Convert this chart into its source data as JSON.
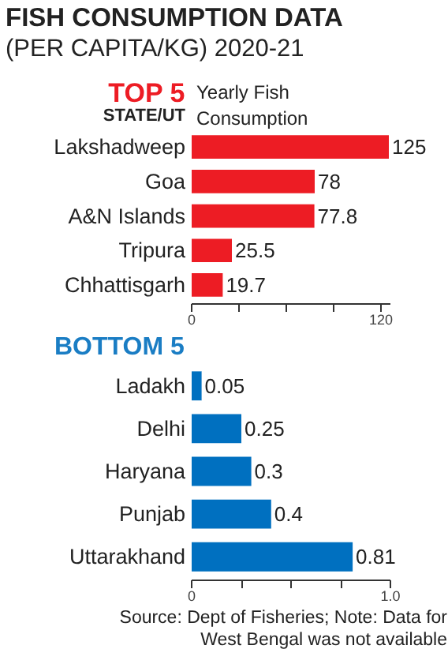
{
  "chart_data": [
    {
      "type": "bar",
      "orientation": "horizontal",
      "title": "FISH CONSUMPTION DATA",
      "subtitle": "(PER CAPITA/KG) 2020-21",
      "annotations": [
        "TOP 5"
      ],
      "ylabel": "STATE/UT",
      "xlabel": "Yearly Fish Consumption",
      "categories": [
        "Lakshadweep",
        "Goa",
        "A&N Islands",
        "Tripura",
        "Chhattisgarh"
      ],
      "values": [
        125,
        78,
        77.8,
        25.5,
        19.7
      ],
      "color": "#ed1c24",
      "xlim": [
        0,
        126
      ],
      "xticks": [
        0,
        {
          "value": 30,
          "label": null
        },
        {
          "value": 60,
          "label": null
        },
        {
          "value": 90,
          "label": null
        },
        120
      ],
      "data_labels": true,
      "grid": false
    },
    {
      "type": "bar",
      "orientation": "horizontal",
      "title": "BOTTOM 5",
      "annotations": [
        "Source: Dept of Fisheries; Note: Data for West Bengal was not available"
      ],
      "categories": [
        "Ladakh",
        "Delhi",
        "Haryana",
        "Punjab",
        "Uttarakhand"
      ],
      "values": [
        0.05,
        0.25,
        0.3,
        0.4,
        0.81
      ],
      "color": "#0070c0",
      "xlim": [
        0,
        1.0
      ],
      "xticks": [
        0,
        {
          "value": 0.25,
          "label": null
        },
        {
          "value": 0.5,
          "label": null
        },
        {
          "value": 0.75,
          "label": null
        },
        {
          "value": 1.0,
          "label": "1.0"
        }
      ],
      "data_labels": true,
      "grid": false
    }
  ]
}
